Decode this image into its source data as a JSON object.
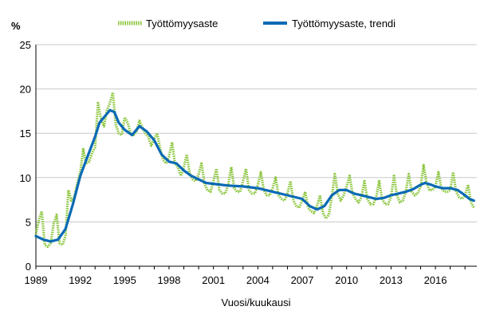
{
  "chart_data": {
    "type": "line",
    "title": "",
    "ylabel": "%",
    "xlabel": "Vuosi/kuukausi",
    "ylim": [
      0,
      25
    ],
    "xlim": [
      1989,
      2018.8
    ],
    "y_ticks": [
      0,
      5,
      10,
      15,
      20,
      25
    ],
    "x_tick_labels": [
      "1989",
      "1992",
      "1995",
      "1998",
      "2001",
      "2004",
      "2007",
      "2010",
      "2013",
      "2016"
    ],
    "grid": "horizontal",
    "legend_position": "top",
    "colors": {
      "raw": "#8dc63f",
      "trend": "#0a6ab4"
    },
    "series": [
      {
        "name": "Työttömyysaste",
        "style": "dotted",
        "x": [
          1989.0,
          1989.2,
          1989.4,
          1989.6,
          1989.8,
          1990.0,
          1990.2,
          1990.4,
          1990.6,
          1990.8,
          1991.0,
          1991.2,
          1991.4,
          1991.6,
          1991.8,
          1992.0,
          1992.2,
          1992.4,
          1992.6,
          1992.8,
          1993.0,
          1993.2,
          1993.4,
          1993.6,
          1993.8,
          1994.0,
          1994.2,
          1994.4,
          1994.6,
          1994.8,
          1995.0,
          1995.2,
          1995.4,
          1995.6,
          1995.8,
          1996.0,
          1996.2,
          1996.4,
          1996.6,
          1996.8,
          1997.0,
          1997.2,
          1997.4,
          1997.6,
          1997.8,
          1998.0,
          1998.2,
          1998.4,
          1998.6,
          1998.8,
          1999.0,
          1999.2,
          1999.4,
          1999.6,
          1999.8,
          2000.0,
          2000.2,
          2000.4,
          2000.6,
          2000.8,
          2001.0,
          2001.2,
          2001.4,
          2001.6,
          2001.8,
          2002.0,
          2002.2,
          2002.4,
          2002.6,
          2002.8,
          2003.0,
          2003.2,
          2003.4,
          2003.6,
          2003.8,
          2004.0,
          2004.2,
          2004.4,
          2004.6,
          2004.8,
          2005.0,
          2005.2,
          2005.4,
          2005.6,
          2005.8,
          2006.0,
          2006.2,
          2006.4,
          2006.6,
          2006.8,
          2007.0,
          2007.2,
          2007.4,
          2007.6,
          2007.8,
          2008.0,
          2008.2,
          2008.4,
          2008.6,
          2008.8,
          2009.0,
          2009.2,
          2009.4,
          2009.6,
          2009.8,
          2010.0,
          2010.2,
          2010.4,
          2010.6,
          2010.8,
          2011.0,
          2011.2,
          2011.4,
          2011.6,
          2011.8,
          2012.0,
          2012.2,
          2012.4,
          2012.6,
          2012.8,
          2013.0,
          2013.2,
          2013.4,
          2013.6,
          2013.8,
          2014.0,
          2014.2,
          2014.4,
          2014.6,
          2014.8,
          2015.0,
          2015.2,
          2015.4,
          2015.6,
          2015.8,
          2016.0,
          2016.2,
          2016.4,
          2016.6,
          2016.8,
          2017.0,
          2017.2,
          2017.4,
          2017.6,
          2017.8,
          2018.0,
          2018.2,
          2018.4,
          2018.6
        ],
        "values": [
          3.6,
          5.2,
          6.2,
          2.4,
          2.2,
          2.6,
          4.8,
          5.8,
          2.6,
          2.4,
          3.4,
          8.6,
          7.4,
          7.8,
          9.4,
          10.6,
          13.2,
          11.6,
          11.8,
          12.8,
          13.4,
          18.4,
          16.6,
          15.8,
          17.6,
          18.4,
          19.6,
          16.0,
          15.0,
          14.8,
          16.8,
          16.2,
          15.0,
          14.8,
          15.2,
          16.4,
          15.6,
          15.0,
          14.6,
          13.6,
          14.4,
          15.0,
          13.2,
          12.0,
          11.6,
          12.4,
          14.0,
          11.6,
          11.2,
          10.2,
          11.2,
          12.6,
          10.4,
          9.8,
          9.6,
          10.4,
          11.6,
          9.2,
          8.6,
          8.4,
          9.6,
          11.0,
          8.6,
          8.2,
          8.2,
          9.2,
          11.2,
          8.8,
          8.4,
          8.4,
          9.6,
          11.0,
          8.6,
          8.2,
          8.2,
          9.2,
          10.6,
          8.6,
          8.0,
          8.0,
          8.8,
          10.0,
          8.0,
          7.6,
          7.4,
          8.2,
          9.6,
          7.4,
          6.8,
          6.6,
          7.4,
          8.4,
          6.6,
          6.2,
          6.0,
          6.8,
          8.0,
          6.0,
          5.4,
          5.8,
          7.8,
          10.4,
          8.2,
          7.4,
          8.0,
          9.0,
          10.2,
          8.2,
          7.6,
          7.2,
          7.8,
          9.6,
          7.6,
          7.0,
          7.0,
          7.8,
          9.6,
          7.6,
          7.0,
          7.0,
          7.8,
          10.2,
          8.0,
          7.2,
          7.4,
          8.4,
          10.4,
          8.4,
          8.0,
          8.2,
          9.0,
          11.4,
          9.4,
          8.6,
          8.6,
          9.0,
          10.6,
          8.8,
          8.4,
          8.4,
          8.6,
          10.6,
          8.4,
          7.8,
          7.6,
          8.0,
          9.2,
          7.2,
          6.6
        ]
      },
      {
        "name": "Työttömyysaste, trendi",
        "style": "solid",
        "x": [
          1989.0,
          1989.5,
          1990.0,
          1990.5,
          1991.0,
          1991.5,
          1992.0,
          1992.5,
          1993.0,
          1993.3,
          1993.7,
          1994.0,
          1994.3,
          1994.6,
          1995.0,
          1995.5,
          1996.0,
          1996.5,
          1997.0,
          1997.5,
          1998.0,
          1998.5,
          1999.0,
          1999.5,
          2000.0,
          2000.5,
          2001.0,
          2002.0,
          2003.0,
          2004.0,
          2005.0,
          2006.0,
          2007.0,
          2007.5,
          2008.0,
          2008.5,
          2009.0,
          2009.5,
          2010.0,
          2010.5,
          2011.0,
          2011.5,
          2012.0,
          2012.5,
          2013.0,
          2013.5,
          2014.0,
          2014.5,
          2015.0,
          2015.3,
          2015.7,
          2016.0,
          2016.5,
          2017.0,
          2017.5,
          2018.0,
          2018.3,
          2018.6
        ],
        "values": [
          3.4,
          3.0,
          2.8,
          3.0,
          4.2,
          7.0,
          10.2,
          12.4,
          14.6,
          16.2,
          17.0,
          17.6,
          17.4,
          16.2,
          15.4,
          14.8,
          15.8,
          15.2,
          14.2,
          12.6,
          11.8,
          11.6,
          10.8,
          10.2,
          9.8,
          9.4,
          9.3,
          9.1,
          9.0,
          8.8,
          8.4,
          8.0,
          7.6,
          6.8,
          6.4,
          6.8,
          8.0,
          8.6,
          8.6,
          8.2,
          8.0,
          7.8,
          7.6,
          7.7,
          8.0,
          8.2,
          8.4,
          8.7,
          9.2,
          9.4,
          9.2,
          9.0,
          8.8,
          8.8,
          8.6,
          8.0,
          7.6,
          7.4
        ]
      }
    ]
  }
}
